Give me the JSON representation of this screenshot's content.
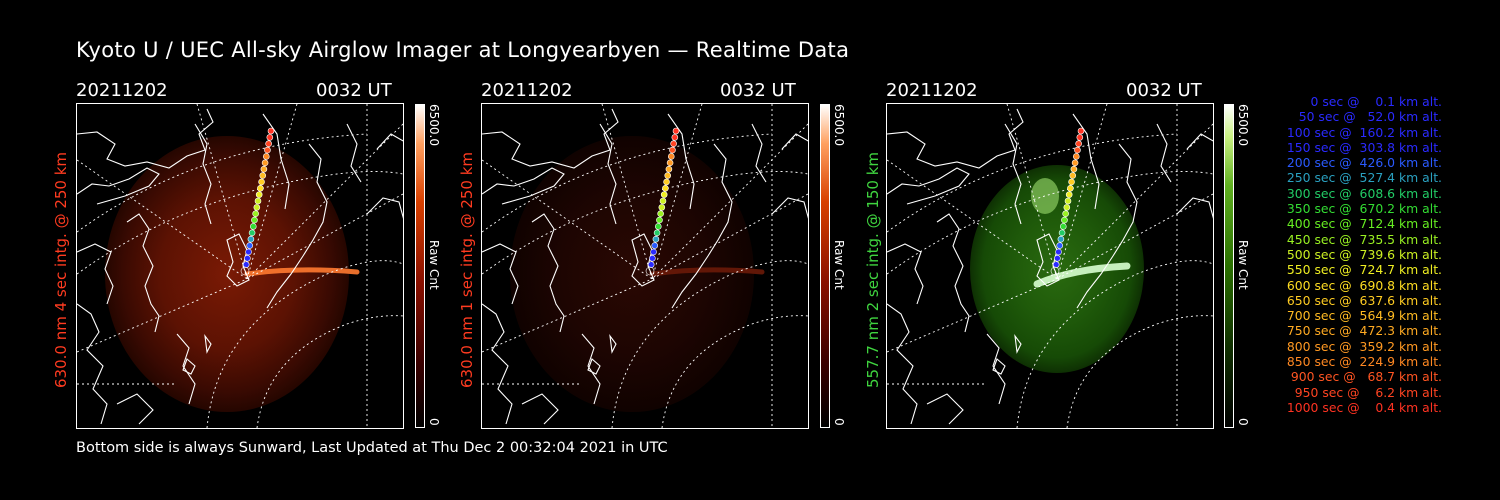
{
  "title": "Kyoto U / UEC All-sky Airglow Imager at Longyearbyen — Realtime Data",
  "footer": "Bottom side is always Sunward, Last Updated at Thu Dec  2 00:32:04 2021 in UTC",
  "panels": [
    {
      "date": "20211202",
      "time": "0032 UT",
      "ylabel": "630.0 nm 4 sec intg. @ 250 km",
      "ylabel_color": "#ff3b20",
      "cbar_max": "6500.0",
      "cbar_min": "0",
      "cbar_unit": "Raw Cnt",
      "palette": "red"
    },
    {
      "date": "20211202",
      "time": "0032 UT",
      "ylabel": "630.0 nm 1 sec intg. @ 250 km",
      "ylabel_color": "#ff3b20",
      "cbar_max": "6500.0",
      "cbar_min": "0",
      "cbar_unit": "Raw Cnt",
      "palette": "red"
    },
    {
      "date": "20211202",
      "time": "0032 UT",
      "ylabel": "557.7 nm 2 sec intg. @ 150 km",
      "ylabel_color": "#3fd43f",
      "cbar_max": "6500.0",
      "cbar_min": "0",
      "cbar_unit": "Raw Cnt",
      "palette": "green"
    }
  ],
  "legend": [
    {
      "text": "   0 sec @    0.1 km alt.",
      "color": "#2a2aff"
    },
    {
      "text": "  50 sec @   52.0 km alt.",
      "color": "#2a2aff"
    },
    {
      "text": " 100 sec @  160.2 km alt.",
      "color": "#2a2aff"
    },
    {
      "text": " 150 sec @  303.8 km alt.",
      "color": "#2a2aff"
    },
    {
      "text": " 200 sec @  426.0 km alt.",
      "color": "#2a5aff"
    },
    {
      "text": " 250 sec @  527.4 km alt.",
      "color": "#2aa0c0"
    },
    {
      "text": " 300 sec @  608.6 km alt.",
      "color": "#22cc66"
    },
    {
      "text": " 350 sec @  670.2 km alt.",
      "color": "#33dd33"
    },
    {
      "text": " 400 sec @  712.4 km alt.",
      "color": "#66ee22"
    },
    {
      "text": " 450 sec @  735.5 km alt.",
      "color": "#99f022"
    },
    {
      "text": " 500 sec @  739.6 km alt.",
      "color": "#ccf022"
    },
    {
      "text": " 550 sec @  724.7 km alt.",
      "color": "#eeee22"
    },
    {
      "text": " 600 sec @  690.8 km alt.",
      "color": "#ffdd22"
    },
    {
      "text": " 650 sec @  637.6 km alt.",
      "color": "#ffcc22"
    },
    {
      "text": " 700 sec @  564.9 km alt.",
      "color": "#ffbb22"
    },
    {
      "text": " 750 sec @  472.3 km alt.",
      "color": "#ffaa22"
    },
    {
      "text": " 800 sec @  359.2 km alt.",
      "color": "#ff9922"
    },
    {
      "text": " 850 sec @  224.9 km alt.",
      "color": "#ff8822"
    },
    {
      "text": " 900 sec @   68.7 km alt.",
      "color": "#ff5522"
    },
    {
      "text": " 950 sec @    6.2 km alt.",
      "color": "#ff4422"
    },
    {
      "text": "1000 sec @    0.4 km alt.",
      "color": "#ff3322"
    }
  ]
}
